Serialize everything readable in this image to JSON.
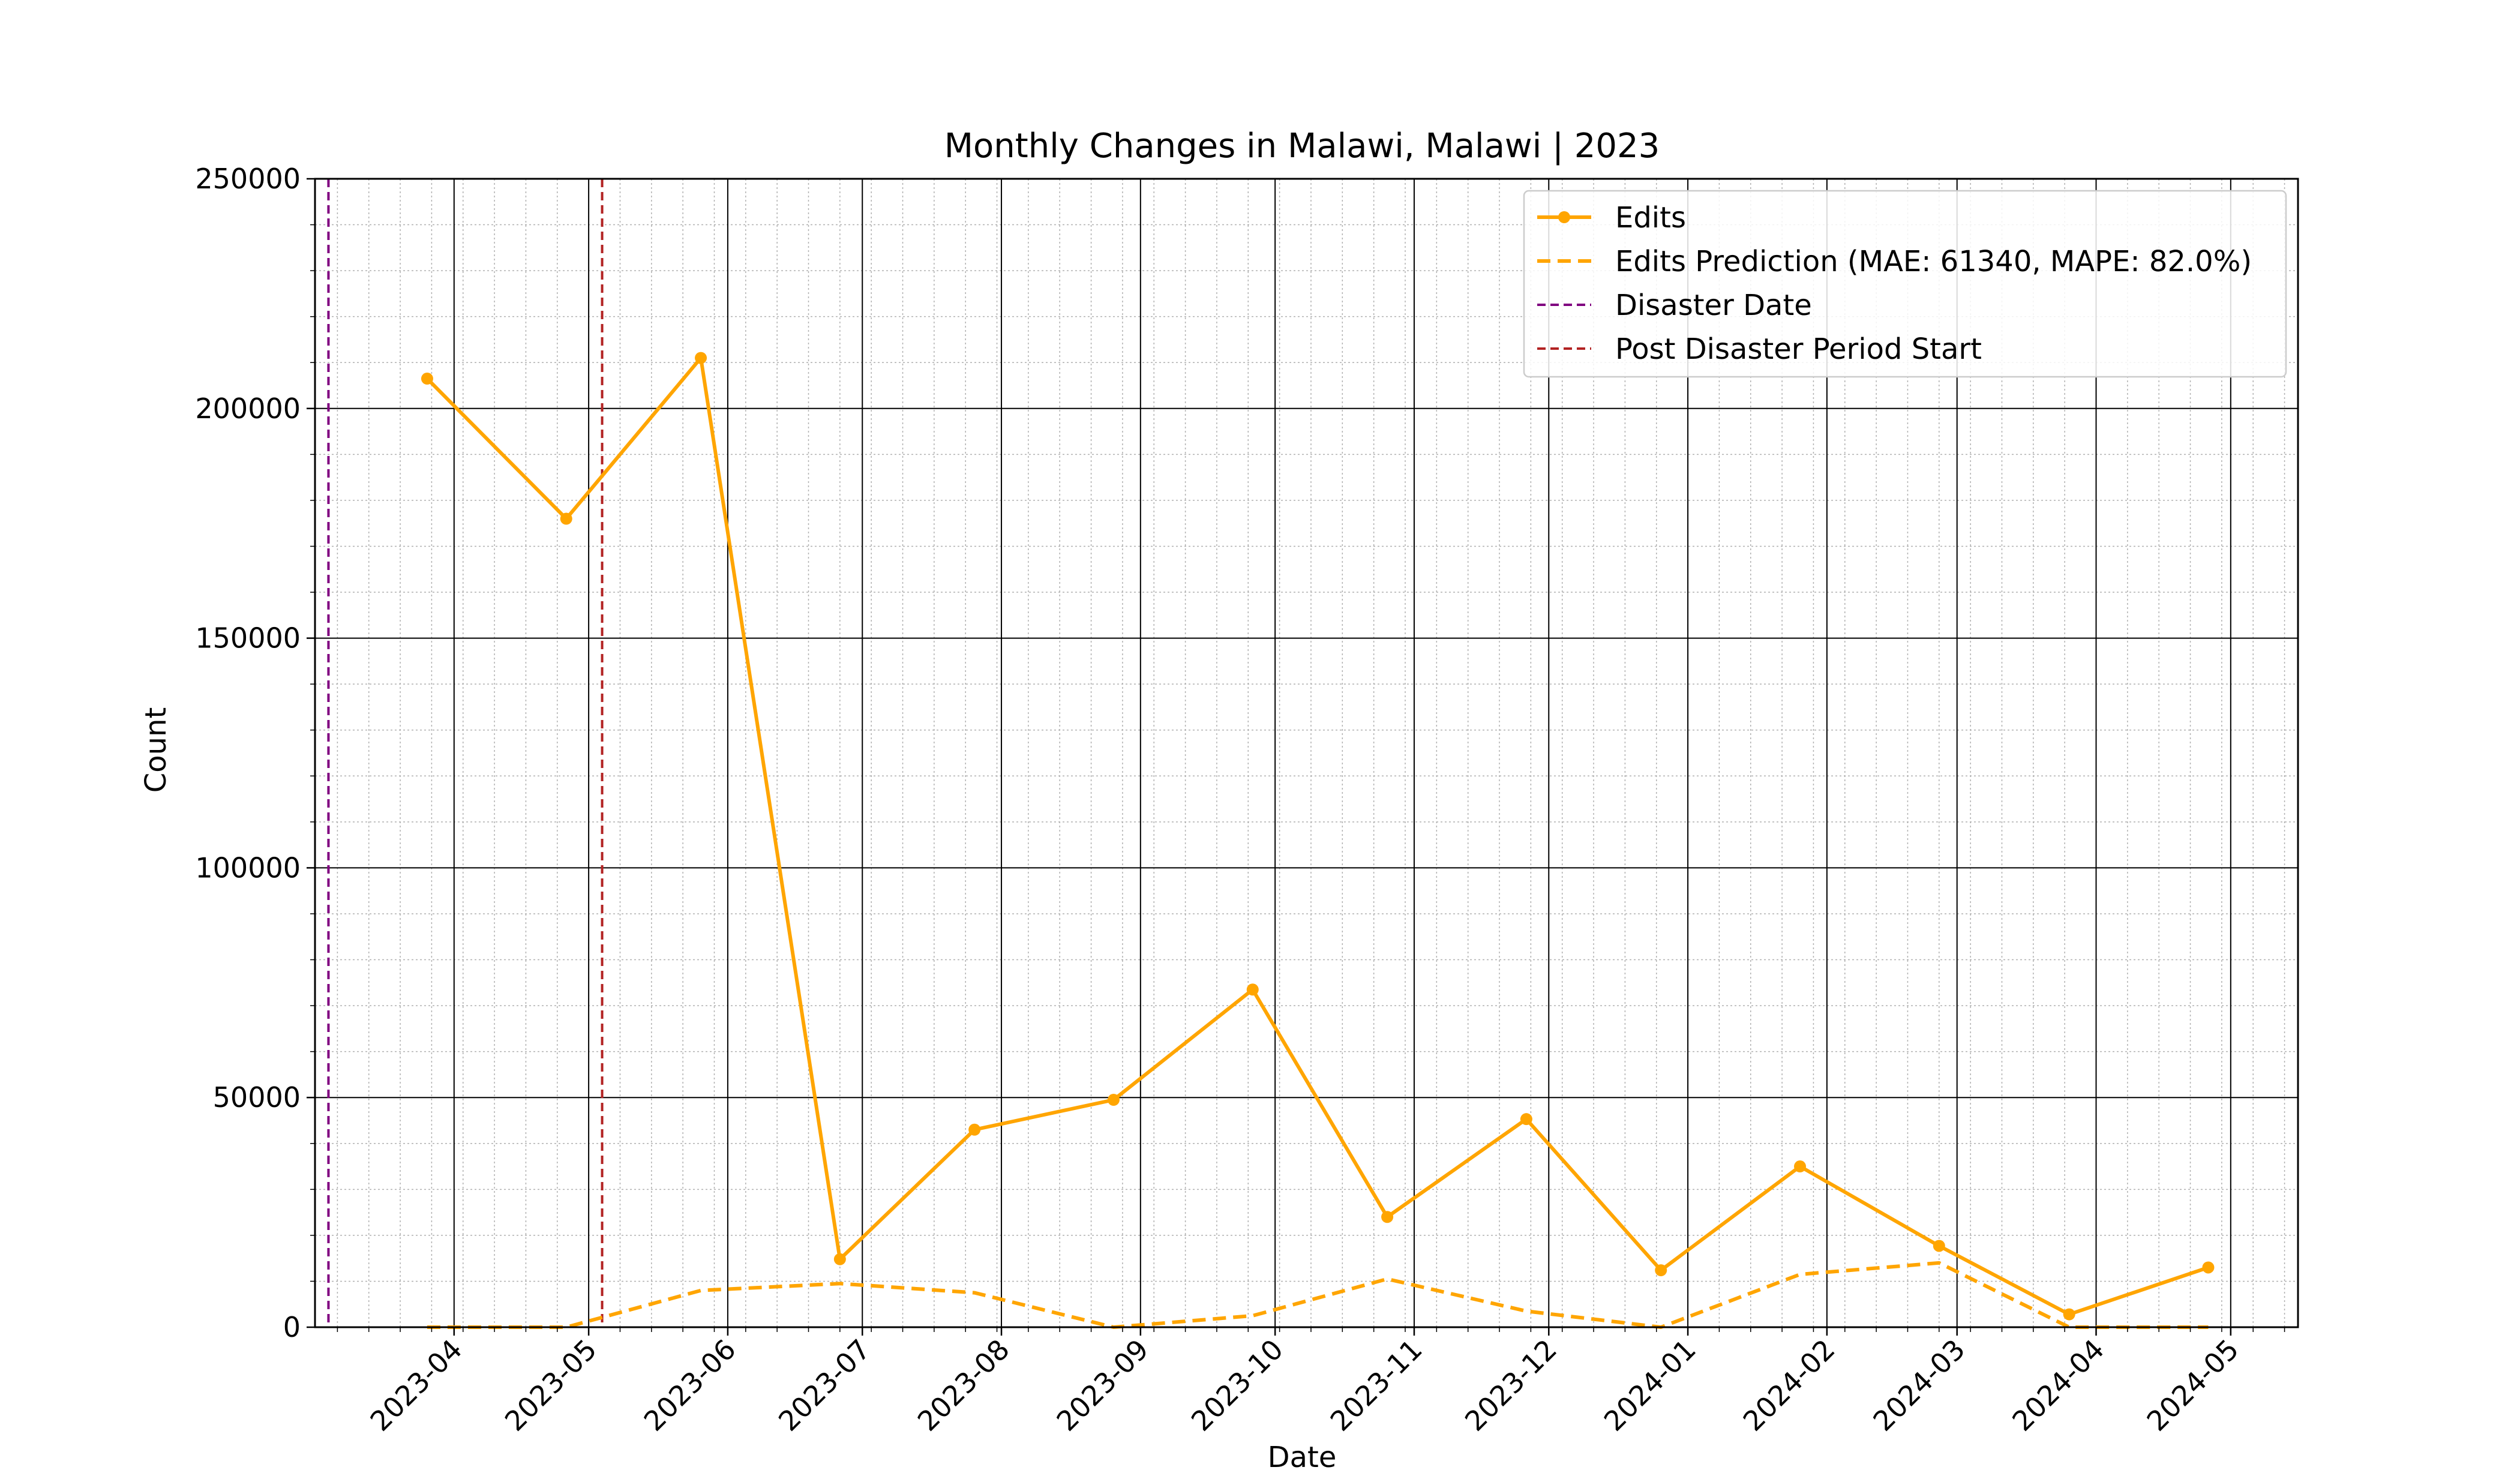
{
  "chart_data": {
    "type": "line",
    "title": "Monthly Changes in Malawi, Malawi | 2023",
    "xlabel": "Date",
    "ylabel": "Count",
    "xlim": [
      "2023-03-01",
      "2024-05-16"
    ],
    "ylim": [
      0,
      250000
    ],
    "grid": true,
    "minor_grid": true,
    "legend_position": "top-right",
    "x_ticks": [
      "2023-04",
      "2023-05",
      "2023-06",
      "2023-07",
      "2023-08",
      "2023-09",
      "2023-10",
      "2023-11",
      "2023-12",
      "2024-01",
      "2024-02",
      "2024-03",
      "2024-04",
      "2024-05"
    ],
    "x_tick_dates": [
      "2023-04-01",
      "2023-05-01",
      "2023-06-01",
      "2023-07-01",
      "2023-08-01",
      "2023-09-01",
      "2023-10-01",
      "2023-11-01",
      "2023-12-01",
      "2024-01-01",
      "2024-02-01",
      "2024-03-01",
      "2024-04-01",
      "2024-05-01"
    ],
    "y_ticks": [
      0,
      50000,
      100000,
      150000,
      200000,
      250000
    ],
    "y_tick_labels": [
      "0",
      "50000",
      "100000",
      "150000",
      "200000",
      "250000"
    ],
    "series": [
      {
        "name": "Edits",
        "style": "solid-marker",
        "color": "#FFA500",
        "x": [
          "2023-03-26",
          "2023-04-26",
          "2023-05-26",
          "2023-06-26",
          "2023-07-26",
          "2023-08-26",
          "2023-09-26",
          "2023-10-26",
          "2023-11-26",
          "2023-12-26",
          "2024-01-26",
          "2024-02-26",
          "2024-03-26",
          "2024-04-26"
        ],
        "values": [
          206500,
          176000,
          211000,
          14800,
          43000,
          49500,
          73500,
          24000,
          45300,
          12400,
          35000,
          17700,
          2800,
          13000
        ]
      },
      {
        "name": "Edits Prediction (MAE: 61340, MAPE: 82.0%)",
        "style": "dashed",
        "color": "#FFA500",
        "x": [
          "2023-03-26",
          "2023-04-26",
          "2023-05-26",
          "2023-06-26",
          "2023-07-26",
          "2023-08-26",
          "2023-09-26",
          "2023-10-26",
          "2023-11-26",
          "2023-12-26",
          "2024-01-26",
          "2024-02-26",
          "2024-03-26",
          "2024-04-26"
        ],
        "values": [
          0,
          0,
          8000,
          9500,
          7500,
          0,
          2500,
          10500,
          3500,
          0,
          11500,
          14000,
          0,
          0
        ]
      }
    ],
    "vlines": [
      {
        "name": "Disaster Date",
        "x": "2023-03-04",
        "color": "#800080",
        "style": "dashed"
      },
      {
        "name": "Post Disaster Period Start",
        "x": "2023-05-04",
        "color": "#B22222",
        "style": "dashed"
      }
    ]
  }
}
